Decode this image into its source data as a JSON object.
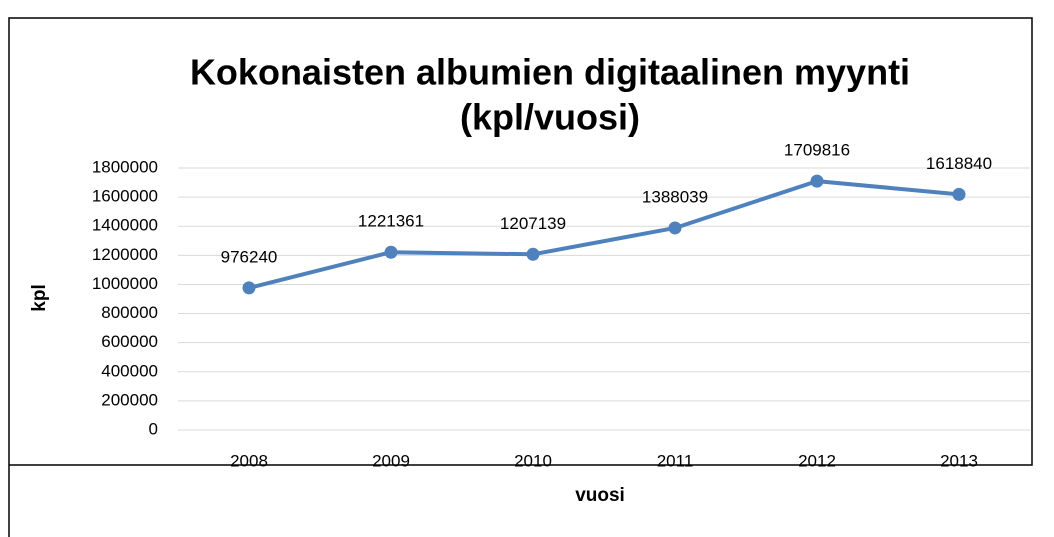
{
  "chart_data": {
    "type": "line",
    "title": [
      "Kokonaisten albumien digitaalinen myynti",
      "(kpl/vuosi)"
    ],
    "xlabel": "vuosi",
    "ylabel": "kpl",
    "categories": [
      "2008",
      "2009",
      "2010",
      "2011",
      "2012",
      "2013"
    ],
    "series": [
      {
        "name": "kpl",
        "color": "#4f81bd",
        "values": [
          976240,
          1221361,
          1207139,
          1388039,
          1709816,
          1618840
        ]
      }
    ],
    "ylim": [
      0,
      1800000
    ],
    "yticks": [
      0,
      200000,
      400000,
      600000,
      800000,
      1000000,
      1200000,
      1400000,
      1600000,
      1800000
    ],
    "grid": true,
    "data_labels": true
  }
}
